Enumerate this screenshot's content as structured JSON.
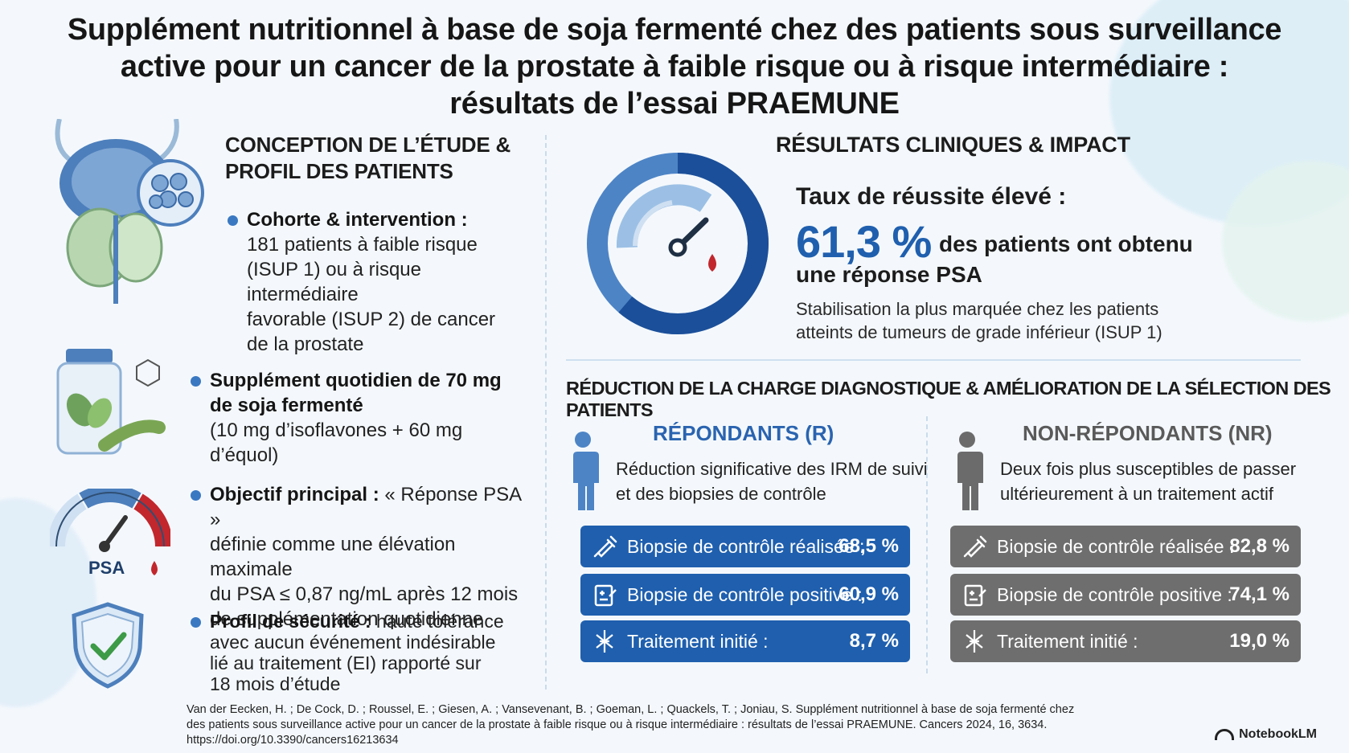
{
  "title_lines": [
    "Supplément nutritionnel à base de soja fermenté chez des patients sous surveillance",
    "active pour un cancer de la prostate à faible risque ou à risque intermédiaire :",
    "résultats de l’essai PRAEMUNE"
  ],
  "left": {
    "heading_lines": [
      "CONCEPTION DE L’ÉTUDE &",
      "PROFIL DES PATIENTS"
    ],
    "cohort": {
      "label": "Cohorte & intervention :",
      "lines": [
        "181 patients à faible risque",
        "(ISUP 1) ou à risque intermédiaire",
        "favorable (ISUP 2) de cancer",
        "de la prostate"
      ]
    },
    "supplement": {
      "label_lines": [
        "Supplément quotidien de 70 mg",
        "de soja fermenté"
      ],
      "detail": "(10 mg d’isoflavones + 60 mg d’équol)"
    },
    "objective": {
      "label": "Objectif principal :",
      "label_rest": " « Réponse PSA »",
      "lines": [
        "définie comme une élévation maximale",
        "du PSA ≤ 0,87 ng/mL après 12 mois",
        "de supplémentation quotidienne"
      ]
    },
    "safety": {
      "label": "Profil de sécurité :",
      "label_rest": " haute tolérance",
      "lines": [
        "avec aucun événement indésirable",
        "lié au traitement (EI) rapporté sur",
        "18 mois d’étude"
      ]
    },
    "psa_gauge_label": "PSA"
  },
  "right": {
    "heading": "RÉSULTATS CLINIQUES & IMPACT",
    "success_title": "Taux de réussite élevé :",
    "success_pct": "61,3 %",
    "success_pct_value": 61.3,
    "success_text_1": "des patients ont obtenu",
    "success_text_2": "une réponse PSA",
    "success_note_lines": [
      "Stabilisation la plus marquée chez les patients",
      "atteints de tumeurs de grade inférieur (ISUP 1)"
    ],
    "reduction_heading": "RÉDUCTION DE LA CHARGE DIAGNOSTIQUE & AMÉLIORATION DE LA SÉLECTION DES PATIENTS",
    "responders": {
      "title": "RÉPONDANTS (R)",
      "desc_lines": [
        "Réduction significative des IRM de suivi",
        "et des biopsies de contrôle"
      ],
      "stats": [
        {
          "icon": "syringe-icon",
          "label": "Biopsie de contrôle réalisée :",
          "value": "68,5 %"
        },
        {
          "icon": "clipboard-icon",
          "label": "Biopsie de contrôle positive :",
          "value": "60,9 %"
        },
        {
          "icon": "medical-icon",
          "label": "Traitement initié :",
          "value": "8,7 %"
        }
      ]
    },
    "non_responders": {
      "title": "NON-RÉPONDANTS (NR)",
      "desc_lines": [
        "Deux fois plus susceptibles de passer",
        "ultérieurement à un traitement actif"
      ],
      "stats": [
        {
          "icon": "syringe-icon",
          "label": "Biopsie de contrôle réalisée :",
          "value": "82,8 %"
        },
        {
          "icon": "clipboard-icon",
          "label": "Biopsie de contrôle positive :",
          "value": "74,1 %"
        },
        {
          "icon": "medical-icon",
          "label": "Traitement initié :",
          "value": "19,0 %"
        }
      ]
    }
  },
  "citation_lines": [
    "Van der Eecken, H. ; De Cock, D. ; Roussel, E. ; Giesen, A. ; Vansevenant, B. ; Goeman, L. ; Quackels, T. ; Joniau, S. Supplément nutritionnel à base de soja fermenté chez",
    "des patients sous surveillance active pour un cancer de la prostate à faible risque ou à risque intermédiaire : résultats de l’essai PRAEMUNE. Cancers 2024, 16, 3634.",
    "https://doi.org/10.3390/cancers16213634"
  ],
  "brand": "NotebookLM",
  "colors": {
    "accent_blue": "#1f5fae",
    "dot_blue": "#3a78c2",
    "gray_panel": "#6e6e6e",
    "responder_title": "#2a64b0",
    "nonresponder_title": "#5a5a5a"
  }
}
